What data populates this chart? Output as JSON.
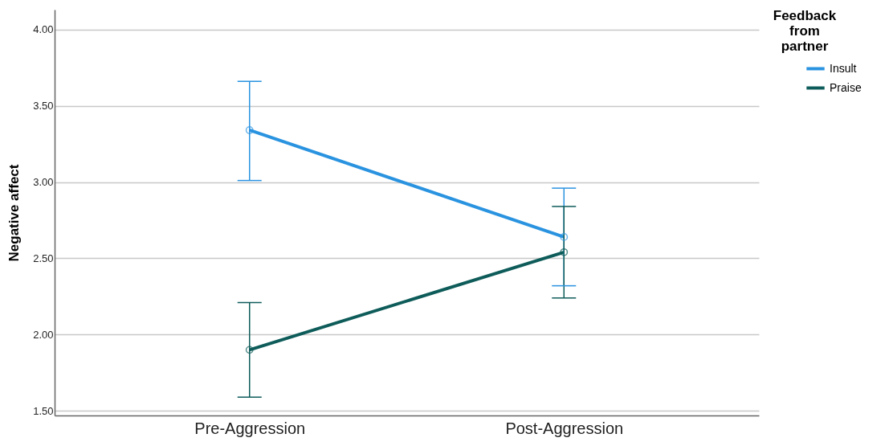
{
  "chart_data": {
    "type": "line",
    "ylabel": "Negative affect",
    "legend_title": "Feedback from partner",
    "categories": [
      "Pre-Aggression",
      "Post-Aggression"
    ],
    "series": [
      {
        "name": "Insult",
        "color": "#2a93e0",
        "values": [
          3.34,
          2.64
        ],
        "errors": [
          [
            3.01,
            3.66
          ],
          [
            2.32,
            2.96
          ]
        ]
      },
      {
        "name": "Praise",
        "color": "#0e5c5a",
        "values": [
          1.9,
          2.54
        ],
        "errors": [
          [
            1.59,
            2.21
          ],
          [
            2.24,
            2.84
          ]
        ]
      }
    ],
    "ylim": [
      1.47,
      4.13
    ],
    "yticks": [
      {
        "value": 1.5,
        "label": "1.50"
      },
      {
        "value": 2,
        "label": "2.00"
      },
      {
        "value": 2.5,
        "label": "2.50"
      },
      {
        "value": 3,
        "label": "3.00"
      },
      {
        "value": 3.5,
        "label": "3.50"
      },
      {
        "value": 4,
        "label": "4.00"
      }
    ],
    "grid": "y",
    "legend": "top right",
    "marker": "circle",
    "line_style": "solid"
  }
}
